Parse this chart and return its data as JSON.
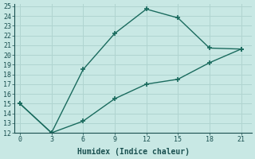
{
  "xlabel": "Humidex (Indice chaleur)",
  "line1_x": [
    0,
    3,
    6,
    9,
    12,
    15,
    18,
    21
  ],
  "line1_y": [
    15,
    12,
    18.5,
    22.2,
    24.7,
    23.8,
    20.7,
    20.6
  ],
  "line2_x": [
    0,
    3,
    6,
    9,
    12,
    15,
    18,
    21
  ],
  "line2_y": [
    15,
    12,
    13.2,
    15.5,
    17.0,
    17.5,
    19.2,
    20.6
  ],
  "line_color": "#1a6b5e",
  "bg_color": "#c8e8e4",
  "grid_color": "#b0d4d0",
  "xlim": [
    -0.5,
    22
  ],
  "ylim": [
    12,
    25.2
  ],
  "xticks": [
    0,
    3,
    6,
    9,
    12,
    15,
    18,
    21
  ],
  "yticks": [
    12,
    13,
    14,
    15,
    16,
    17,
    18,
    19,
    20,
    21,
    22,
    23,
    24,
    25
  ],
  "font_color": "#1a5050",
  "font_family": "monospace",
  "xlabel_fontsize": 7,
  "tick_fontsize": 6
}
